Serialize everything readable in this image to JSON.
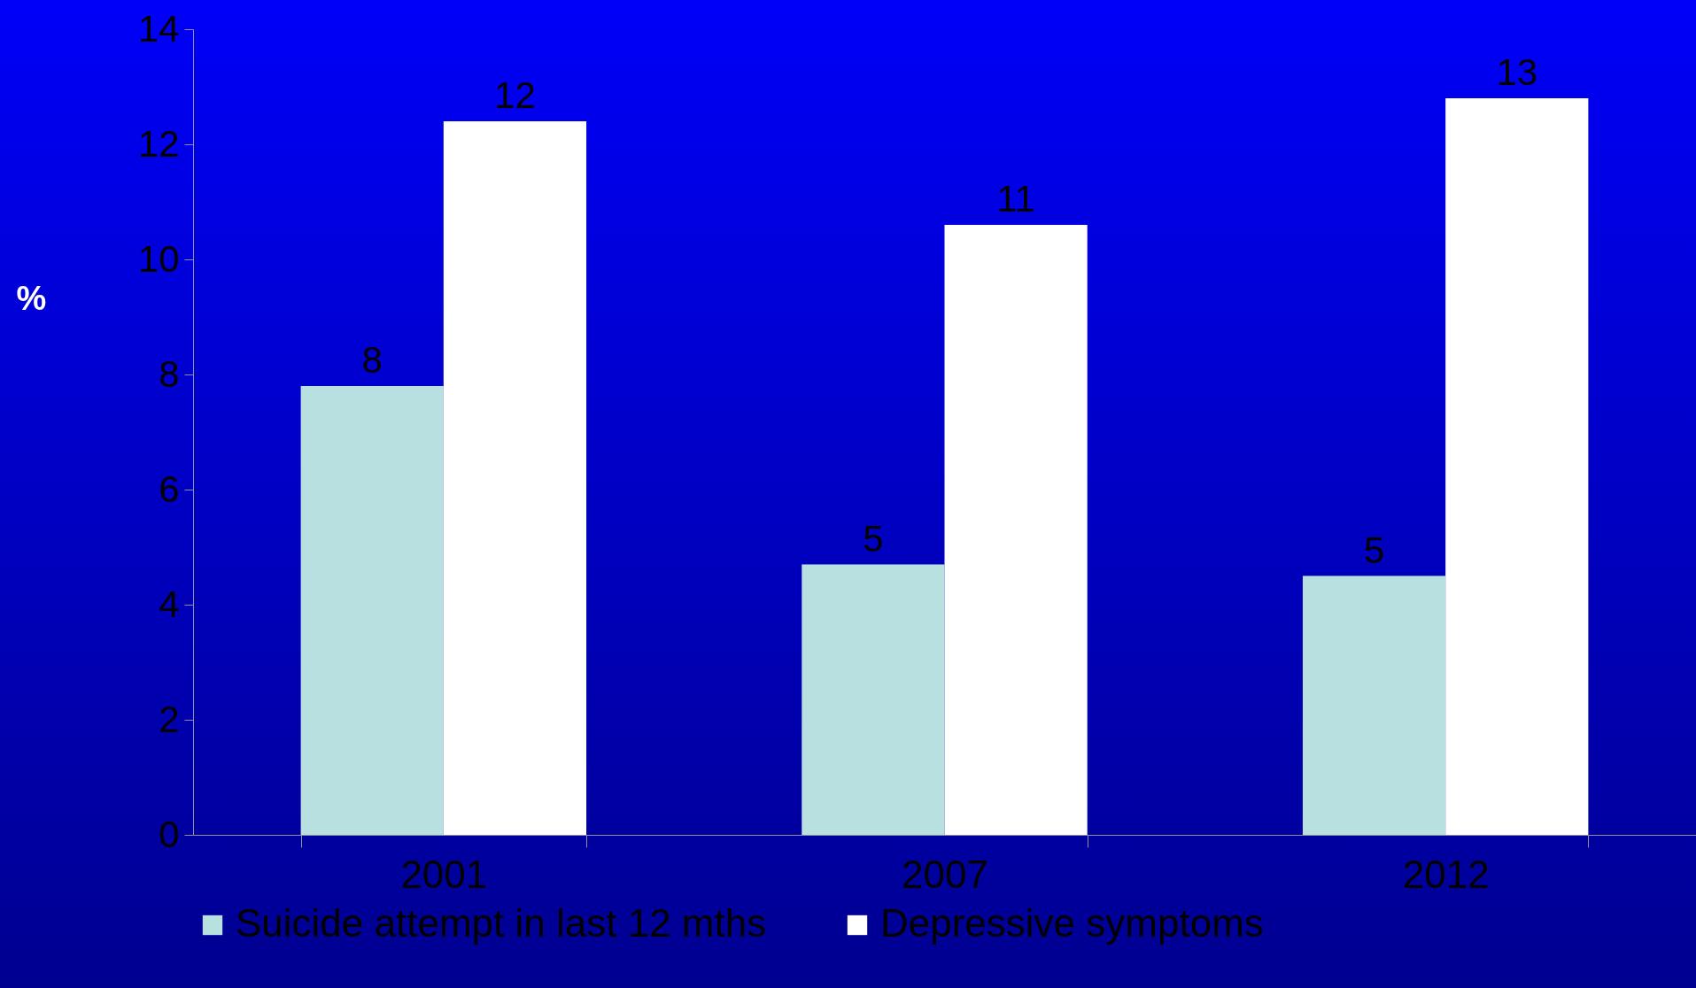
{
  "chart_data": {
    "type": "bar",
    "ylabel": "%",
    "categories": [
      "2001",
      "2007",
      "2012"
    ],
    "series": [
      {
        "name": "Suicide attempt in last 12 mths",
        "color": "#b8e0e0",
        "values": [
          7.8,
          4.7,
          4.5
        ],
        "value_labels": [
          "8",
          "5",
          "5"
        ]
      },
      {
        "name": "Depressive symptoms",
        "color": "#ffffff",
        "values": [
          12.4,
          10.6,
          12.8
        ],
        "value_labels": [
          "12",
          "11",
          "13"
        ]
      }
    ],
    "ylim": [
      0,
      14
    ],
    "yticks": [
      0,
      2,
      4,
      6,
      8,
      10,
      12,
      14
    ],
    "grid": false,
    "legend": "bottom"
  }
}
